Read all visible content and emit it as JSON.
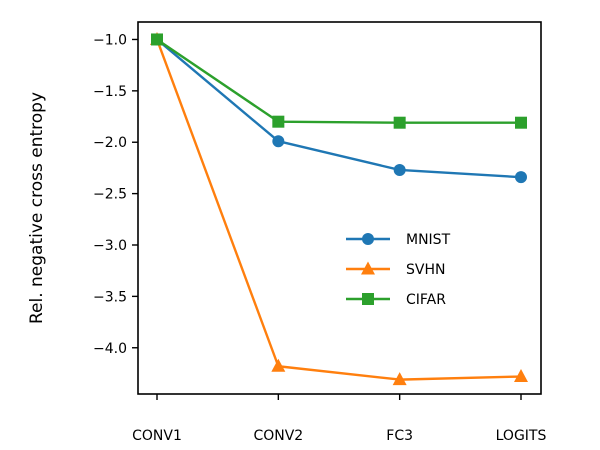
{
  "chart_data": {
    "type": "line",
    "categories": [
      "CONV1",
      "CONV2",
      "FC3",
      "LOGITS"
    ],
    "xlabel": "",
    "ylabel": "Rel. negative cross entropy",
    "ylim": [
      -4.45,
      -0.83
    ],
    "yticks": [
      -1.0,
      -1.5,
      -2.0,
      -2.5,
      -3.0,
      -3.5,
      -4.0
    ],
    "ytick_labels": [
      "−1.0",
      "−1.5",
      "−2.0",
      "−2.5",
      "−3.0",
      "−3.5",
      "−4.0"
    ],
    "grid": false,
    "legend_position": "center-right",
    "series": [
      {
        "name": "MNIST",
        "values": [
          -1.0,
          -1.99,
          -2.27,
          -2.34
        ],
        "color": "#1f77b4",
        "marker": "circle"
      },
      {
        "name": "SVHN",
        "values": [
          -1.0,
          -4.18,
          -4.31,
          -4.28
        ],
        "color": "#ff7f0e",
        "marker": "triangle"
      },
      {
        "name": "CIFAR",
        "values": [
          -1.0,
          -1.8,
          -1.81,
          -1.81
        ],
        "color": "#2ca02c",
        "marker": "square"
      }
    ]
  }
}
